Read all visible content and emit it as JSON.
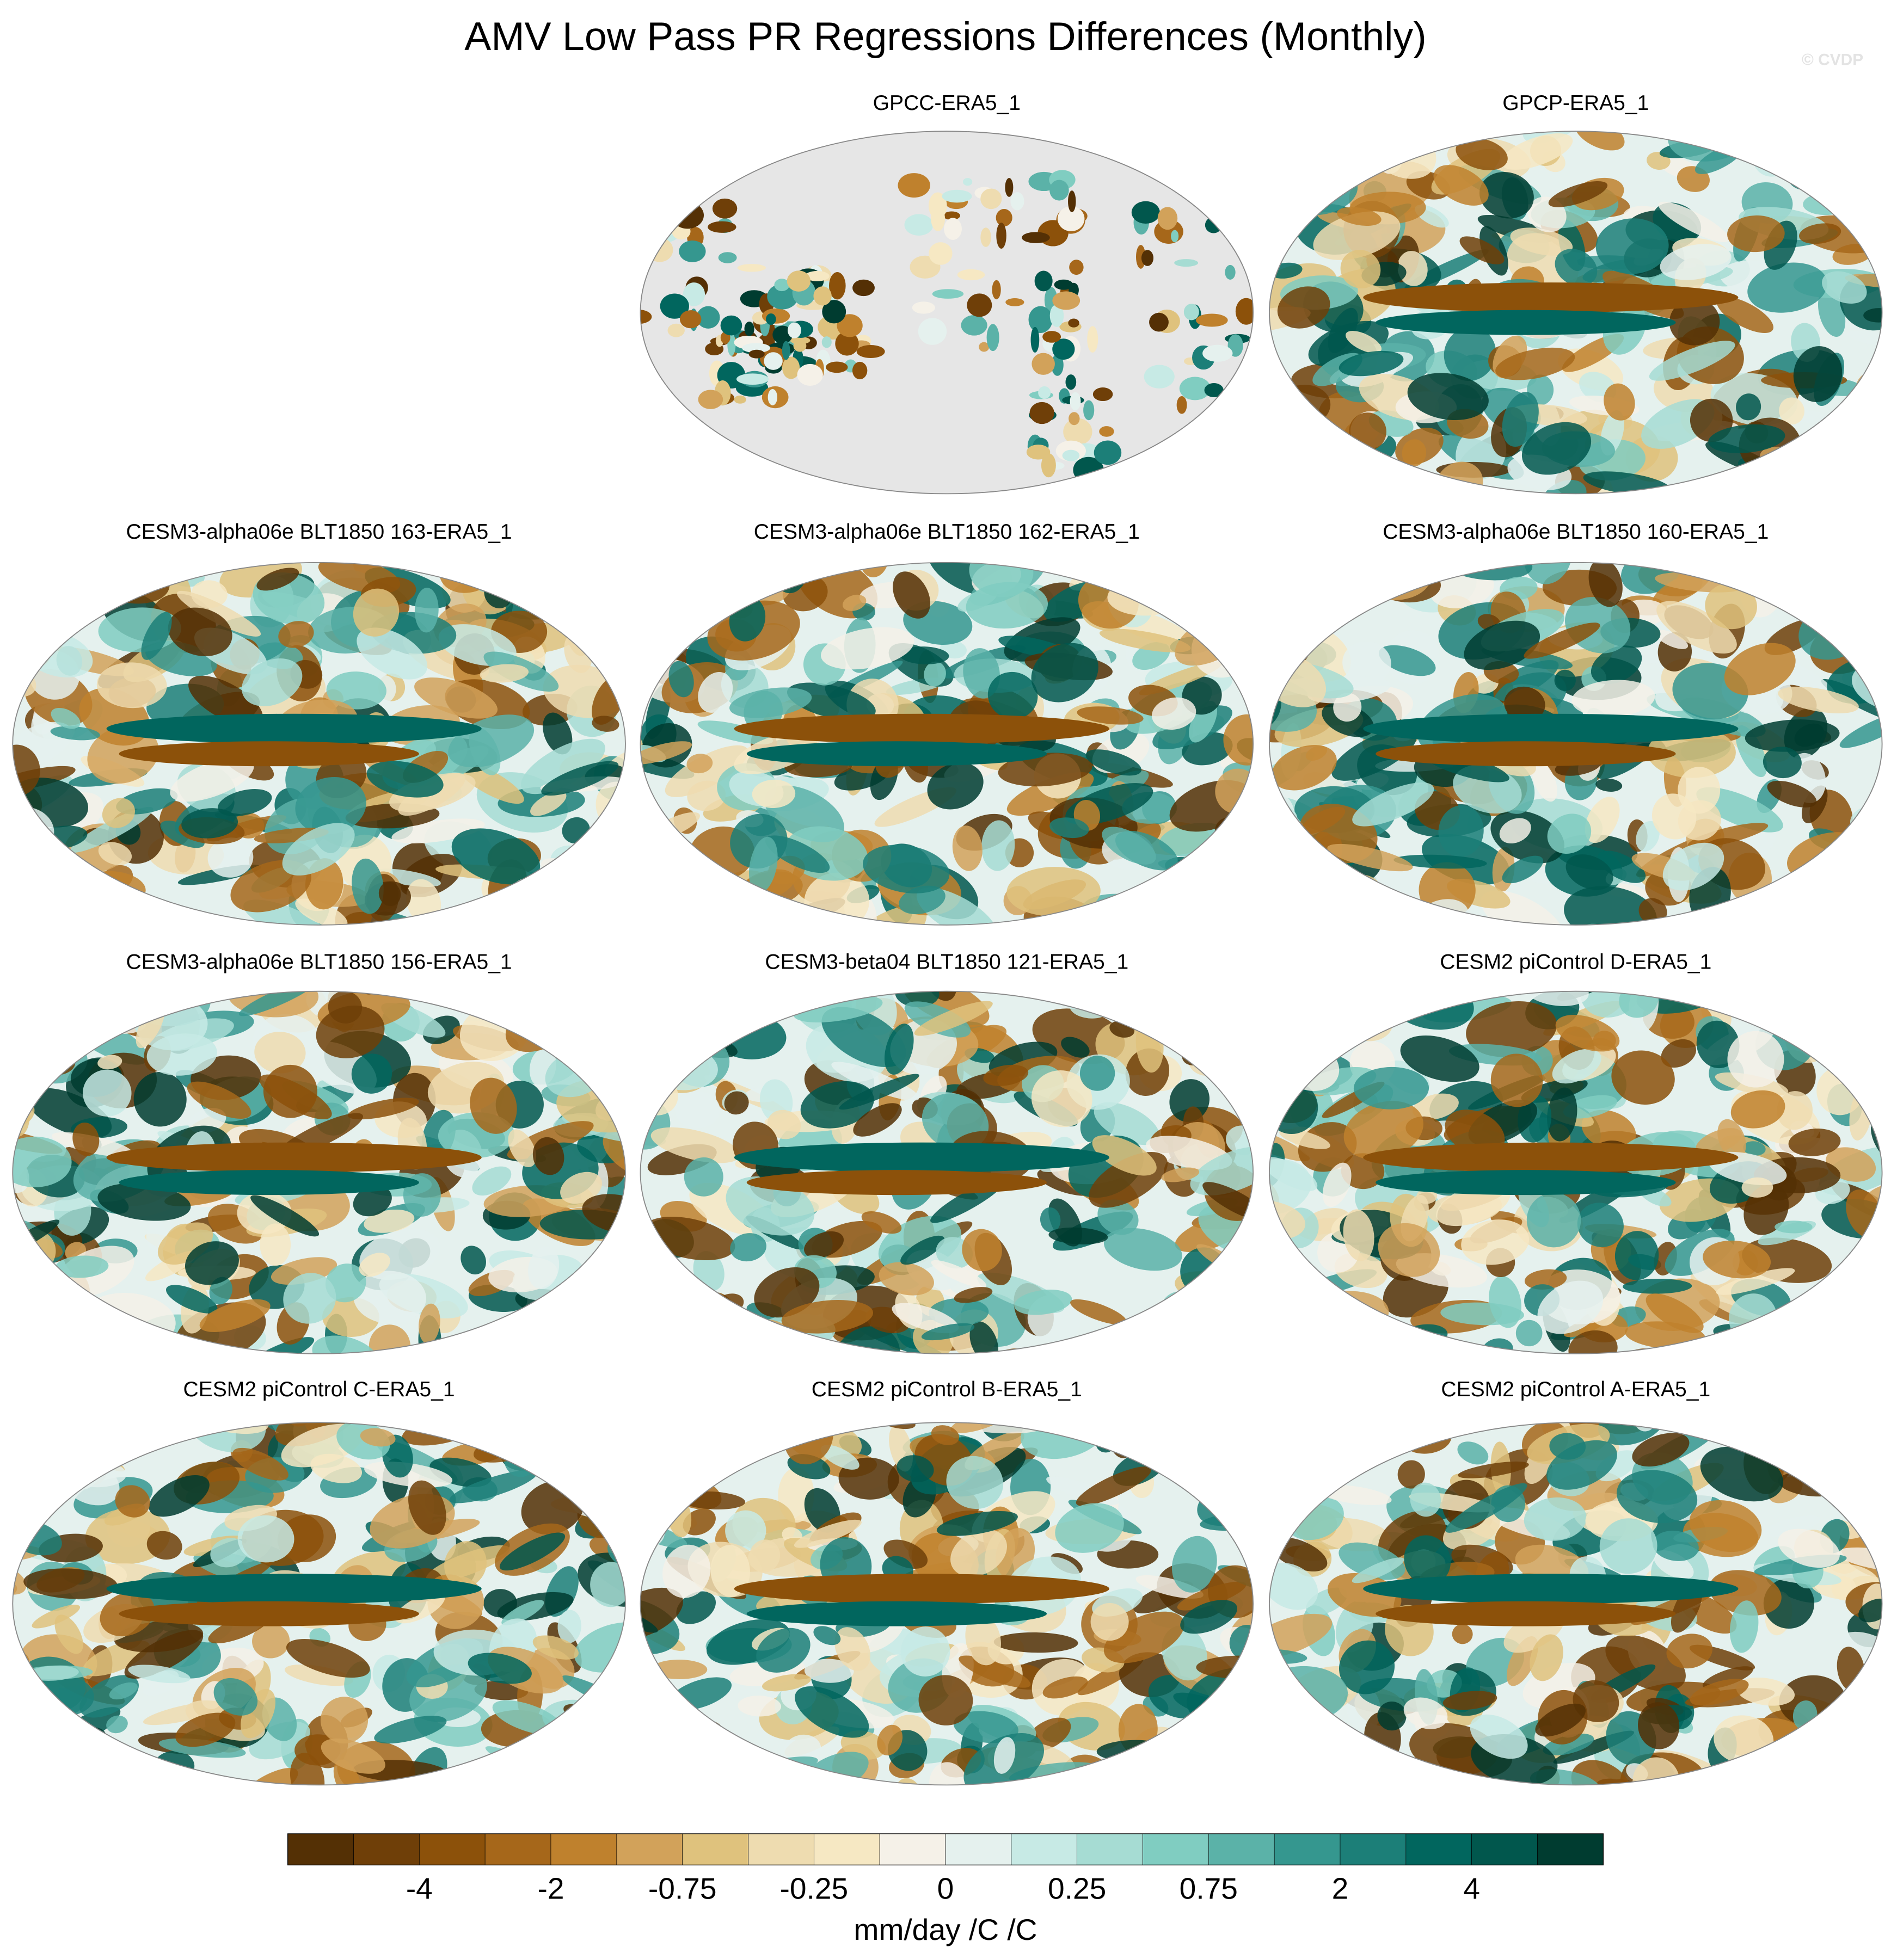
{
  "title": "AMV Low Pass PR Regressions Differences (Monthly)",
  "watermark": "© CVDP",
  "panels": [
    {
      "title": "GPCC-ERA5_1"
    },
    {
      "title": "GPCP-ERA5_1"
    },
    {
      "title": "CESM3-alpha06e BLT1850 163-ERA5_1"
    },
    {
      "title": "CESM3-alpha06e BLT1850 162-ERA5_1"
    },
    {
      "title": "CESM3-alpha06e BLT1850 160-ERA5_1"
    },
    {
      "title": "CESM3-alpha06e BLT1850 156-ERA5_1"
    },
    {
      "title": "CESM3-beta04 BLT1850 121-ERA5_1"
    },
    {
      "title": "CESM2 piControl D-ERA5_1"
    },
    {
      "title": "CESM2 piControl C-ERA5_1"
    },
    {
      "title": "CESM2 piControl B-ERA5_1"
    },
    {
      "title": "CESM2 piControl A-ERA5_1"
    }
  ],
  "colorbar": {
    "colors": [
      "#543005",
      "#6f3f08",
      "#8c510a",
      "#a6671a",
      "#bf812d",
      "#d2a25a",
      "#dfc27d",
      "#eedcb0",
      "#f6e8c3",
      "#f5f1e8",
      "#e5f1ee",
      "#c7eae5",
      "#a6dcd3",
      "#80cdc1",
      "#5bb2a8",
      "#35978f",
      "#1c7f78",
      "#01665e",
      "#01574d",
      "#003c30"
    ],
    "labels": [
      "-4",
      "-2",
      "-0.75",
      "-0.25",
      "0",
      "0.25",
      "0.75",
      "2",
      "4"
    ],
    "units": "mm/day /C /C"
  }
}
